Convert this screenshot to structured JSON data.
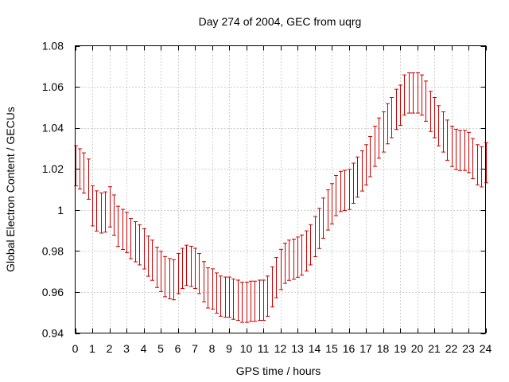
{
  "chart_data": {
    "type": "line",
    "title": "Day 274 of 2004, GEC from uqrg",
    "xlabel": "GPS time / hours",
    "ylabel": "Global Electron Content / GECUs",
    "xlim": [
      0,
      24
    ],
    "ylim": [
      0.94,
      1.08
    ],
    "xticks": [
      0,
      1,
      2,
      3,
      4,
      5,
      6,
      7,
      8,
      9,
      10,
      11,
      12,
      13,
      14,
      15,
      16,
      17,
      18,
      19,
      20,
      21,
      22,
      23,
      24
    ],
    "yticks": [
      0.94,
      0.96,
      0.98,
      1.0,
      1.02,
      1.04,
      1.06,
      1.08
    ],
    "ytick_labels": [
      "0.94",
      "0.96",
      "0.98",
      "1",
      "1.02",
      "1.04",
      "1.06",
      "1.08"
    ],
    "grid": true,
    "legend": false,
    "series": [
      {
        "name": "GEC",
        "style": "errorbars",
        "color": "#cc0000",
        "error": 0.0098,
        "x": [
          0.0,
          0.25,
          0.5,
          0.75,
          1.0,
          1.25,
          1.5,
          1.75,
          2.0,
          2.25,
          2.5,
          2.75,
          3.0,
          3.25,
          3.5,
          3.75,
          4.0,
          4.25,
          4.5,
          4.75,
          5.0,
          5.25,
          5.5,
          5.75,
          6.0,
          6.25,
          6.5,
          6.75,
          7.0,
          7.25,
          7.5,
          7.75,
          8.0,
          8.25,
          8.5,
          8.75,
          9.0,
          9.25,
          9.5,
          9.75,
          10.0,
          10.25,
          10.5,
          10.75,
          11.0,
          11.25,
          11.5,
          11.75,
          12.0,
          12.25,
          12.5,
          12.75,
          13.0,
          13.25,
          13.5,
          13.75,
          14.0,
          14.25,
          14.5,
          14.75,
          15.0,
          15.25,
          15.5,
          15.75,
          16.0,
          16.25,
          16.5,
          16.75,
          17.0,
          17.25,
          17.5,
          17.75,
          18.0,
          18.25,
          18.5,
          18.75,
          19.0,
          19.25,
          19.5,
          19.75,
          20.0,
          20.25,
          20.5,
          20.75,
          21.0,
          21.25,
          21.5,
          21.75,
          22.0,
          22.25,
          22.5,
          22.75,
          23.0,
          23.25,
          23.5,
          23.75,
          24.0
        ],
        "y": [
          1.0215,
          1.02,
          1.018,
          1.015,
          1.002,
          0.9995,
          0.9985,
          0.999,
          1.0015,
          0.9975,
          0.992,
          0.9905,
          0.989,
          0.986,
          0.9845,
          0.983,
          0.981,
          0.9775,
          0.9755,
          0.972,
          0.97,
          0.9675,
          0.9665,
          0.966,
          0.969,
          0.9715,
          0.973,
          0.9725,
          0.9715,
          0.969,
          0.965,
          0.962,
          0.9615,
          0.9595,
          0.958,
          0.9575,
          0.9575,
          0.9565,
          0.956,
          0.955,
          0.955,
          0.9555,
          0.9555,
          0.956,
          0.956,
          0.958,
          0.9625,
          0.967,
          0.971,
          0.974,
          0.9755,
          0.976,
          0.977,
          0.978,
          0.98,
          0.983,
          0.987,
          0.991,
          0.996,
          1.0,
          1.003,
          1.007,
          1.009,
          1.0095,
          1.01,
          1.013,
          1.016,
          1.019,
          1.022,
          1.026,
          1.031,
          1.035,
          1.038,
          1.042,
          1.045,
          1.049,
          1.051,
          1.056,
          1.057,
          1.057,
          1.057,
          1.056,
          1.053,
          1.048,
          1.045,
          1.041,
          1.038,
          1.034,
          1.031,
          1.0295,
          1.029,
          1.029,
          1.028,
          1.025,
          1.022,
          1.021,
          1.023
        ]
      }
    ]
  }
}
